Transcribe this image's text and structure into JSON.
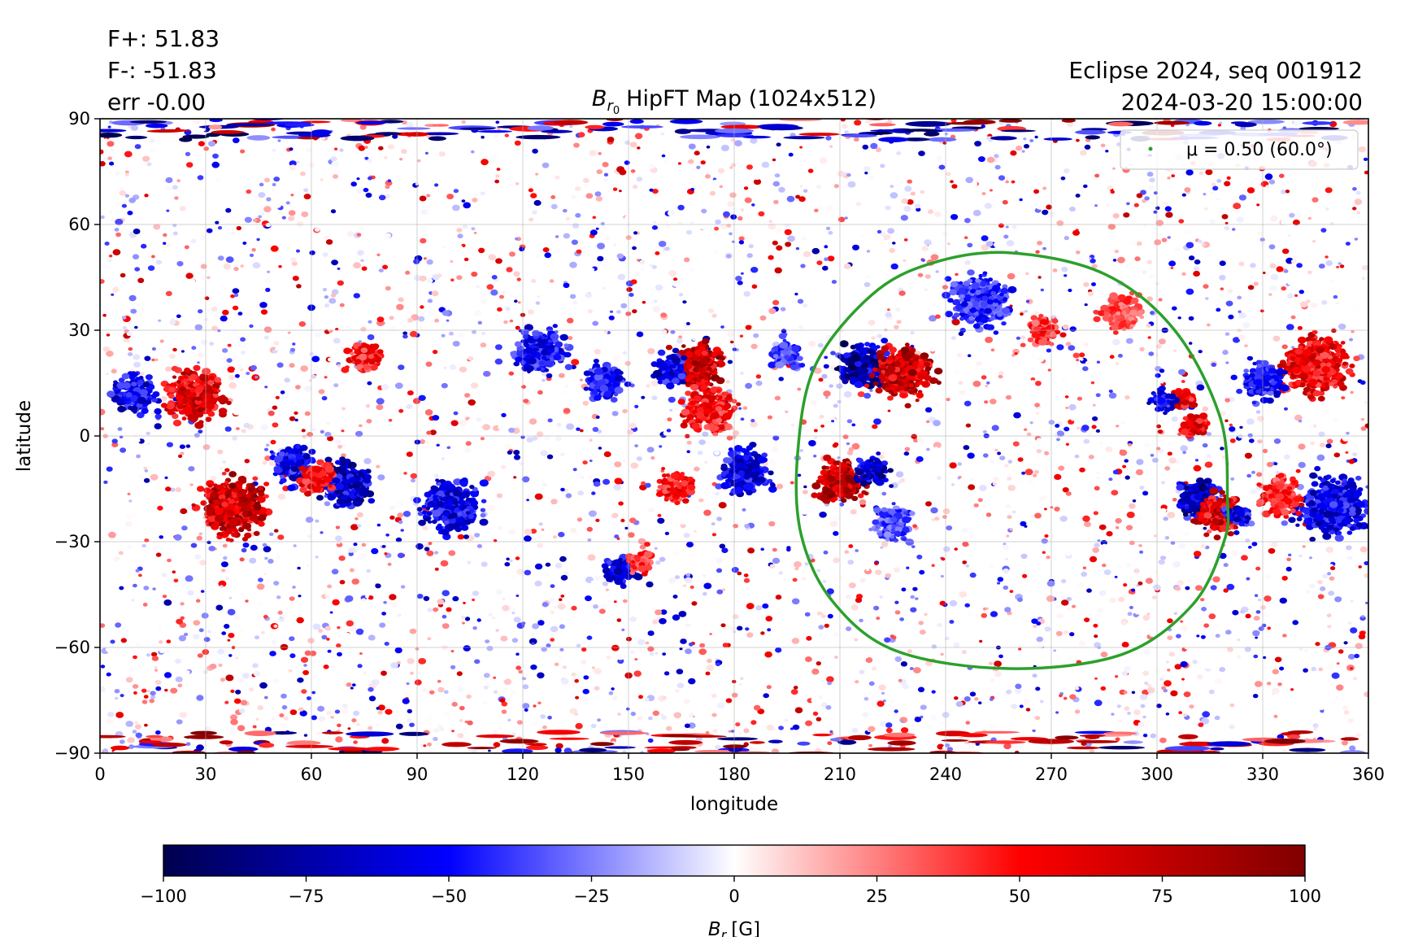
{
  "header": {
    "flux_pos": "F+: 51.83",
    "flux_neg": "F-: -51.83",
    "flux_err": "err -0.00",
    "sequence": "Eclipse 2024, seq 001912",
    "datetime": "2024-03-20 15:00:00"
  },
  "chart_data": {
    "type": "heatmap",
    "title": "HipFT Map (1024x512)",
    "title_symbol": "B",
    "title_subscript": "r",
    "title_subsubscript": "0",
    "xlabel": "longitude",
    "ylabel": "latitude",
    "xlim": [
      0,
      360
    ],
    "ylim": [
      -90,
      90
    ],
    "x_ticks": [
      0,
      30,
      60,
      90,
      120,
      150,
      180,
      210,
      240,
      270,
      300,
      330,
      360
    ],
    "y_ticks": [
      90,
      60,
      30,
      0,
      -30,
      -60,
      -90
    ],
    "y_tick_labels": [
      "90",
      "60",
      "30",
      "0",
      "−30",
      "−60",
      "−90"
    ],
    "grid": true,
    "colormap": "seismic",
    "colors": {
      "neg_max": "#00004d",
      "neg_mid": "#0000ff",
      "zero": "#ffffff",
      "pos_mid": "#ff0000",
      "pos_max": "#800000"
    },
    "legend": {
      "location": "top-right",
      "label": "μ = 0.50 (60.0°)",
      "color": "#2ca02c"
    },
    "mu_contour": {
      "mu": 0.5,
      "angle_deg": 60.0,
      "lon": [
        258,
        285,
        305,
        318,
        320,
        319,
        310,
        290,
        258,
        226,
        208,
        199,
        198,
        203,
        219,
        236,
        258
      ],
      "lat": [
        52,
        46,
        30,
        5,
        -18,
        -30,
        -48,
        -62,
        -66,
        -61,
        -47,
        -28,
        -5,
        20,
        40,
        49,
        52
      ]
    },
    "regions": [
      {
        "lon": 217,
        "lat": 20,
        "sign": -1,
        "strength": 1.0,
        "size": 6
      },
      {
        "lon": 228,
        "lat": 18,
        "sign": 1,
        "strength": 1.0,
        "size": 7
      },
      {
        "lon": 210,
        "lat": -13,
        "sign": 1,
        "strength": 1.0,
        "size": 6
      },
      {
        "lon": 219,
        "lat": -10,
        "sign": -1,
        "strength": 0.9,
        "size": 4
      },
      {
        "lon": 312,
        "lat": -18,
        "sign": -1,
        "strength": 1.0,
        "size": 5
      },
      {
        "lon": 318,
        "lat": -22,
        "sign": 1,
        "strength": 0.9,
        "size": 5
      },
      {
        "lon": 323,
        "lat": -23,
        "sign": -1,
        "strength": 0.8,
        "size": 3
      },
      {
        "lon": 308,
        "lat": 10,
        "sign": 1,
        "strength": 0.8,
        "size": 3
      },
      {
        "lon": 302,
        "lat": 10,
        "sign": -1,
        "strength": 0.8,
        "size": 3
      },
      {
        "lon": 311,
        "lat": 3,
        "sign": 1,
        "strength": 0.8,
        "size": 3
      },
      {
        "lon": 170,
        "lat": 20,
        "sign": 1,
        "strength": 1.0,
        "size": 6
      },
      {
        "lon": 162,
        "lat": 18,
        "sign": -1,
        "strength": 0.8,
        "size": 4
      },
      {
        "lon": 173,
        "lat": 7,
        "sign": 1,
        "strength": 0.7,
        "size": 6
      },
      {
        "lon": 27,
        "lat": 12,
        "sign": 1,
        "strength": 0.9,
        "size": 7
      },
      {
        "lon": 10,
        "lat": 12,
        "sign": -1,
        "strength": 0.8,
        "size": 5
      },
      {
        "lon": 38,
        "lat": -20,
        "sign": 1,
        "strength": 1.0,
        "size": 8
      },
      {
        "lon": 55,
        "lat": -8,
        "sign": -1,
        "strength": 0.8,
        "size": 5
      },
      {
        "lon": 70,
        "lat": -14,
        "sign": -1,
        "strength": 0.9,
        "size": 6
      },
      {
        "lon": 62,
        "lat": -12,
        "sign": 1,
        "strength": 0.7,
        "size": 4
      },
      {
        "lon": 100,
        "lat": -20,
        "sign": -1,
        "strength": 0.8,
        "size": 7
      },
      {
        "lon": 125,
        "lat": 24,
        "sign": -1,
        "strength": 0.7,
        "size": 6
      },
      {
        "lon": 143,
        "lat": 15,
        "sign": -1,
        "strength": 0.7,
        "size": 5
      },
      {
        "lon": 183,
        "lat": -10,
        "sign": -1,
        "strength": 0.8,
        "size": 6
      },
      {
        "lon": 163,
        "lat": -15,
        "sign": 1,
        "strength": 0.7,
        "size": 4
      },
      {
        "lon": 148,
        "lat": -38,
        "sign": -1,
        "strength": 0.8,
        "size": 4
      },
      {
        "lon": 153,
        "lat": -36,
        "sign": 1,
        "strength": 0.6,
        "size": 3
      },
      {
        "lon": 75,
        "lat": 22,
        "sign": 1,
        "strength": 0.7,
        "size": 4
      },
      {
        "lon": 290,
        "lat": 35,
        "sign": 1,
        "strength": 0.5,
        "size": 5
      },
      {
        "lon": 345,
        "lat": 20,
        "sign": 1,
        "strength": 0.8,
        "size": 8
      },
      {
        "lon": 330,
        "lat": 16,
        "sign": -1,
        "strength": 0.7,
        "size": 5
      },
      {
        "lon": 350,
        "lat": -20,
        "sign": -1,
        "strength": 0.8,
        "size": 8
      },
      {
        "lon": 335,
        "lat": -17,
        "sign": 1,
        "strength": 0.6,
        "size": 5
      },
      {
        "lon": 250,
        "lat": 38,
        "sign": -1,
        "strength": 0.6,
        "size": 7
      },
      {
        "lon": 268,
        "lat": 30,
        "sign": 1,
        "strength": 0.6,
        "size": 4
      },
      {
        "lon": 225,
        "lat": -25,
        "sign": -1,
        "strength": 0.5,
        "size": 5
      },
      {
        "lon": 195,
        "lat": 23,
        "sign": -1,
        "strength": 0.5,
        "size": 4
      }
    ],
    "colorbar": {
      "label_symbol": "B",
      "label_subscript": "r",
      "label_unit": "[G]",
      "range": [
        -100,
        100
      ],
      "ticks": [
        -100,
        -75,
        -50,
        -25,
        0,
        25,
        50,
        75,
        100
      ],
      "tick_labels": [
        "−100",
        "−75",
        "−50",
        "−25",
        "0",
        "25",
        "50",
        "75",
        "100"
      ]
    }
  }
}
